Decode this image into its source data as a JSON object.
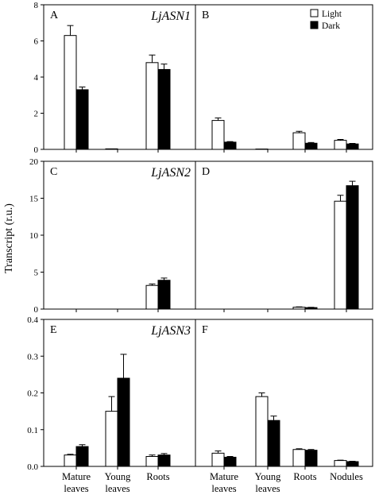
{
  "figure": {
    "ylabel": "Transcript (r.u.)",
    "legend": [
      {
        "label": "Light",
        "color": "#ffffff"
      },
      {
        "label": "Dark",
        "color": "#000000"
      }
    ],
    "categories": [
      {
        "line1": "Mature",
        "line2": "leaves"
      },
      {
        "line1": "Young",
        "line2": "leaves"
      },
      {
        "line1": "Roots",
        "line2": ""
      },
      {
        "line1": "Nodules",
        "line2": ""
      }
    ]
  },
  "chart_data": [
    {
      "panel": "A",
      "gene": "LjASN1",
      "type": "bar",
      "ylim": [
        0,
        8
      ],
      "yticks": [
        0,
        2,
        4,
        6,
        8
      ],
      "categories": [
        "Mature leaves",
        "Young leaves",
        "Roots"
      ],
      "series": [
        {
          "name": "Light",
          "values": [
            6.3,
            0.03,
            4.8
          ],
          "errors": [
            0.55,
            0.0,
            0.42
          ]
        },
        {
          "name": "Dark",
          "values": [
            3.3,
            0.0,
            4.42
          ],
          "errors": [
            0.15,
            0.0,
            0.3
          ]
        }
      ]
    },
    {
      "panel": "B",
      "gene": "",
      "type": "bar",
      "ylim": [
        0,
        8
      ],
      "yticks": [],
      "categories": [
        "Mature leaves",
        "Young leaves",
        "Roots",
        "Nodules"
      ],
      "series": [
        {
          "name": "Light",
          "values": [
            1.6,
            0.02,
            0.92,
            0.5
          ],
          "errors": [
            0.14,
            0.0,
            0.08,
            0.05
          ]
        },
        {
          "name": "Dark",
          "values": [
            0.4,
            0.0,
            0.34,
            0.3
          ],
          "errors": [
            0.03,
            0.0,
            0.04,
            0.03
          ]
        }
      ]
    },
    {
      "panel": "C",
      "gene": "LjASN2",
      "type": "bar",
      "ylim": [
        0,
        20
      ],
      "yticks": [
        0,
        5,
        10,
        15,
        20
      ],
      "categories": [
        "Mature leaves",
        "Young leaves",
        "Roots"
      ],
      "series": [
        {
          "name": "Light",
          "values": [
            0,
            0,
            3.2
          ],
          "errors": [
            0,
            0,
            0.2
          ]
        },
        {
          "name": "Dark",
          "values": [
            0,
            0,
            3.9
          ],
          "errors": [
            0,
            0,
            0.3
          ]
        }
      ]
    },
    {
      "panel": "D",
      "gene": "",
      "type": "bar",
      "ylim": [
        0,
        20
      ],
      "yticks": [],
      "categories": [
        "Mature leaves",
        "Young leaves",
        "Roots",
        "Nodules"
      ],
      "series": [
        {
          "name": "Light",
          "values": [
            0,
            0,
            0.25,
            14.6
          ],
          "errors": [
            0,
            0,
            0.05,
            0.8
          ]
        },
        {
          "name": "Dark",
          "values": [
            0,
            0,
            0.2,
            16.7
          ],
          "errors": [
            0,
            0,
            0.04,
            0.6
          ]
        }
      ]
    },
    {
      "panel": "E",
      "gene": "LjASN3",
      "type": "bar",
      "ylim": [
        0,
        0.4
      ],
      "yticks": [
        0.0,
        0.1,
        0.2,
        0.3,
        0.4
      ],
      "categories": [
        "Mature leaves",
        "Young leaves",
        "Roots"
      ],
      "series": [
        {
          "name": "Light",
          "values": [
            0.031,
            0.15,
            0.027
          ],
          "errors": [
            0.002,
            0.04,
            0.004
          ]
        },
        {
          "name": "Dark",
          "values": [
            0.054,
            0.24,
            0.031
          ],
          "errors": [
            0.005,
            0.065,
            0.004
          ]
        }
      ]
    },
    {
      "panel": "F",
      "gene": "",
      "type": "bar",
      "ylim": [
        0,
        0.4
      ],
      "yticks": [],
      "categories": [
        "Mature leaves",
        "Young leaves",
        "Roots",
        "Nodules"
      ],
      "series": [
        {
          "name": "Light",
          "values": [
            0.036,
            0.19,
            0.046,
            0.016
          ],
          "errors": [
            0.006,
            0.01,
            0.002,
            0.001
          ]
        },
        {
          "name": "Dark",
          "values": [
            0.025,
            0.125,
            0.044,
            0.013
          ],
          "errors": [
            0.002,
            0.012,
            0.002,
            0.001
          ]
        }
      ]
    }
  ]
}
